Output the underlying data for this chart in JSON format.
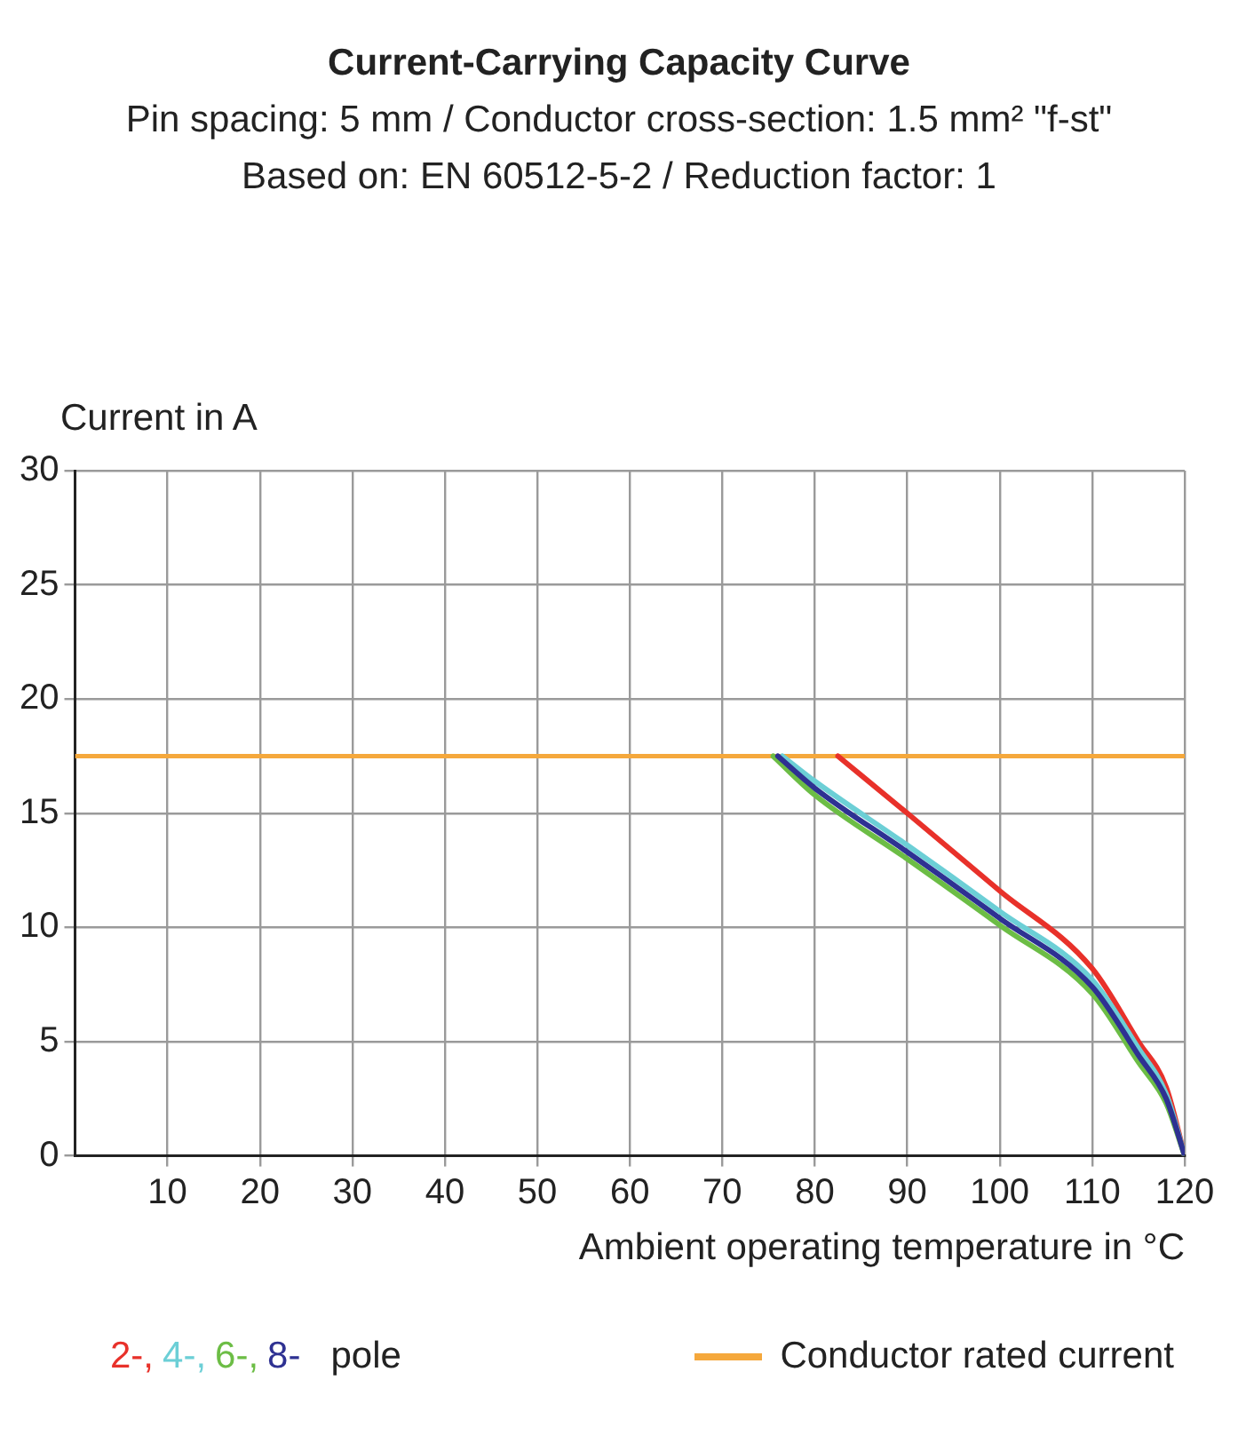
{
  "chart_data": {
    "type": "line",
    "title": "Current-Carrying Capacity Curve",
    "subtitle": "Pin spacing: 5 mm / Conductor cross-section: 1.5 mm² \"f-st\"\nBased on: EN 60512-5-2 / Reduction factor: 1",
    "xlabel": "Ambient operating temperature in °C",
    "ylabel": "Current in A",
    "legend_title": "pole",
    "series": [
      {
        "name": "2-,",
        "color": "#e8312a",
        "x": [
          82.5,
          90,
          100,
          110,
          115,
          118,
          120
        ],
        "values": [
          17.5,
          15,
          11.6,
          8.2,
          5,
          3,
          0
        ]
      },
      {
        "name": "4-,",
        "color": "#6ccfd6",
        "x": [
          76.5,
          80,
          90,
          100,
          110,
          115,
          118,
          120
        ],
        "values": [
          17.5,
          16.4,
          13.6,
          10.7,
          7.7,
          4.7,
          2.7,
          0
        ]
      },
      {
        "name": "6-,",
        "color": "#6cbd45",
        "x": [
          75.5,
          80,
          90,
          100,
          110,
          115,
          118,
          120
        ],
        "values": [
          17.5,
          15.8,
          13,
          10.1,
          7.1,
          4.1,
          2.3,
          0
        ]
      },
      {
        "name": "8-",
        "color": "#2e3192",
        "x": [
          76,
          80,
          90,
          100,
          110,
          115,
          118,
          120
        ],
        "values": [
          17.5,
          16.1,
          13.3,
          10.4,
          7.4,
          4.4,
          2.5,
          0
        ]
      }
    ],
    "ref_lines": [
      {
        "axis": "y",
        "value": 17.5,
        "label": "Conductor rated current",
        "color": "#f5a83c"
      }
    ],
    "xlim": [
      0,
      120
    ],
    "xticks": [
      10,
      20,
      30,
      40,
      50,
      60,
      70,
      80,
      90,
      100,
      110,
      120
    ],
    "ylim": [
      0,
      30
    ],
    "yticks": [
      0,
      5,
      10,
      15,
      20,
      25,
      30
    ],
    "grid": true,
    "legend": "bottom",
    "marker": "none",
    "line_style": "solid"
  }
}
